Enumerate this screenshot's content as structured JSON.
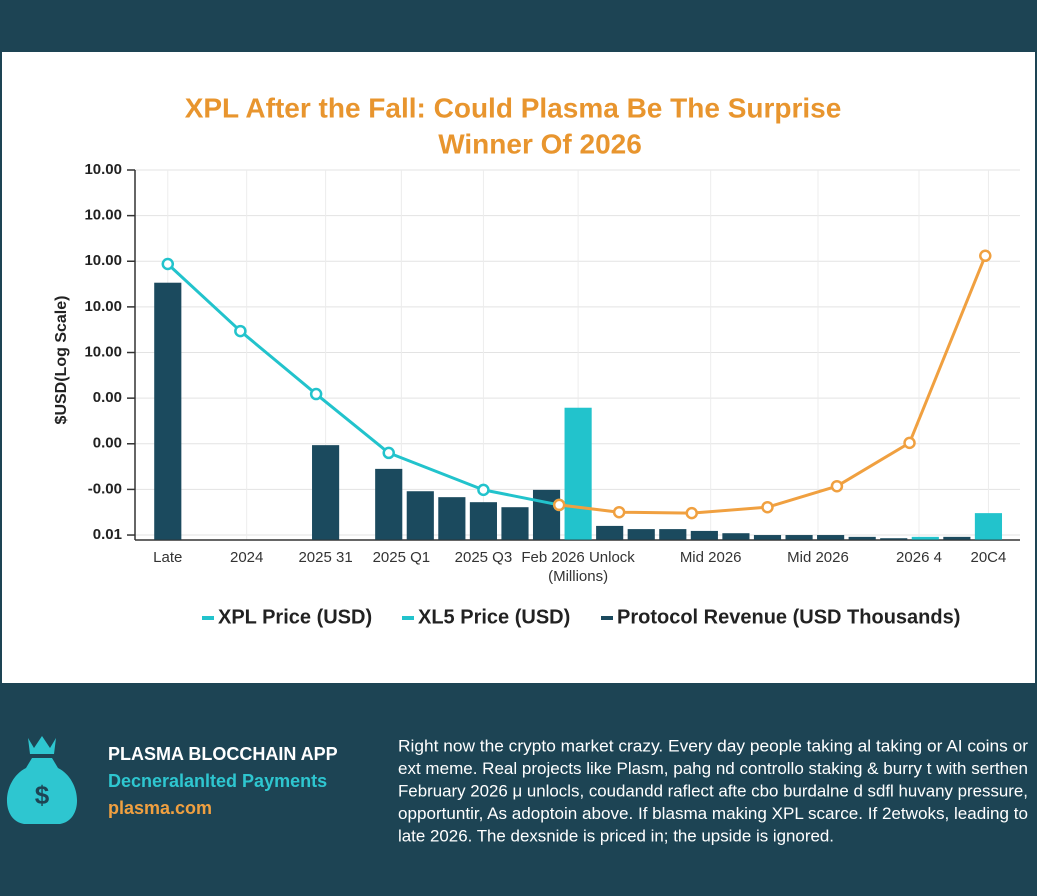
{
  "chart_data": {
    "type": "bar+line",
    "title": [
      "XPL After the Fall: Could Plasma Be The Surprise",
      "Winner Of 2026"
    ],
    "y_label": "$USD(Log Scale)",
    "xlim": [
      -0.5,
      27
    ],
    "xticks": [
      {
        "value": 0,
        "label": "Late"
      },
      {
        "value": 2.5,
        "label": "2024"
      },
      {
        "value": 5,
        "label": "2025 31"
      },
      {
        "value": 7.4,
        "label": "2025 Q1"
      },
      {
        "value": 10,
        "label": "2025 Q3"
      },
      {
        "value": 13,
        "label": "Feb 2026 Unlock"
      },
      {
        "value": 17.2,
        "label": "Mid 2026"
      },
      {
        "value": 20.6,
        "label": "Mid 2026"
      },
      {
        "value": 23.8,
        "label": "2026 4"
      },
      {
        "value": 26,
        "label": "20C4"
      }
    ],
    "x_note": "(Millions)",
    "ylim": [
      -0.1,
      8
    ],
    "yticks": [
      {
        "value": 0,
        "label": "0.01"
      },
      {
        "value": 1,
        "label": "-0.00"
      },
      {
        "value": 2,
        "label": "0.00"
      },
      {
        "value": 3,
        "label": "0.00"
      },
      {
        "value": 4,
        "label": "10.00"
      },
      {
        "value": 5,
        "label": "10.00"
      },
      {
        "value": 6,
        "label": "10.00"
      },
      {
        "value": 7,
        "label": "10.00"
      },
      {
        "value": 8,
        "label": "10.00"
      }
    ],
    "grid": true,
    "series": [
      {
        "name": "XPL Price (USD)",
        "type": "line",
        "color": "#22c3cc",
        "x": [
          0,
          2.3,
          4.7,
          7,
          10,
          12.4
        ],
        "values": [
          5.94,
          4.47,
          3.09,
          1.8,
          0.99,
          0.66
        ]
      },
      {
        "name": "XL5 Price (USD)",
        "type": "bar",
        "color": "#22c3cc",
        "x": [
          13,
          24,
          26
        ],
        "values": [
          2.79,
          -0.04,
          0.48
        ]
      },
      {
        "name": "Protocol Revenue (USD Thousands)",
        "type": "bar",
        "color": "#1b4a5e",
        "x": [
          0,
          5,
          7,
          8,
          9,
          10,
          11,
          12,
          14,
          15,
          16,
          17,
          18,
          19,
          20,
          21,
          22,
          23,
          25
        ],
        "values": [
          5.53,
          1.97,
          1.45,
          0.96,
          0.83,
          0.72,
          0.61,
          0.99,
          0.2,
          0.13,
          0.13,
          0.09,
          0.04,
          0,
          0,
          0,
          -0.04,
          -0.07,
          -0.04
        ]
      },
      {
        "type": "line",
        "color": "#f0a040",
        "x": [
          12.4,
          14.3,
          16.6,
          19,
          21.2,
          23.5,
          25.9
        ],
        "values": [
          0.66,
          0.5,
          0.48,
          0.61,
          1.07,
          2.02,
          6.12
        ]
      }
    ]
  },
  "footer": {
    "app_name": "PLASMA BLOCCHAIN APP",
    "tagline": "Decneralanlted Payments",
    "site": "plasma.com",
    "paragraph": [
      "Right now the crypto market crazy. Every day people taking al taking or AI coins or",
      "ext meme. Real projects like Plasm, pahg nd controllo staking & burry t with serthen",
      "February 2026 μ unlocls, coudandd raflect afte cbo burdalne d sdfl huvany pressure,",
      "opportuntir, As adoptoin above. If blasma making XPL scarce. If 2etwoks, leading to",
      "late 2026. The dexsnide is priced in; the upside is ignored."
    ]
  }
}
